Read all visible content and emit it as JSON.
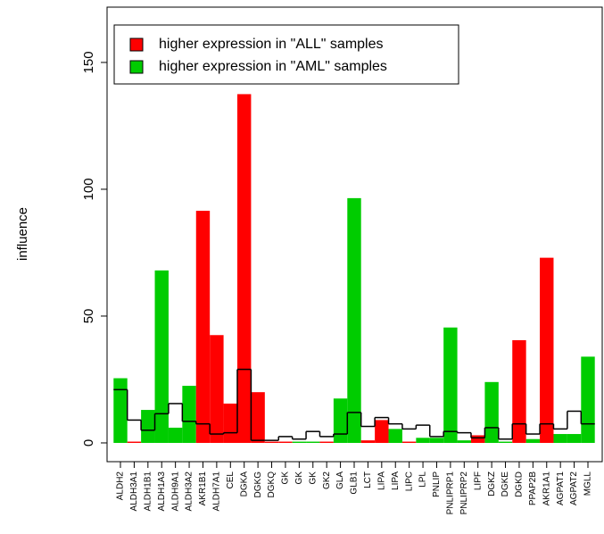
{
  "chart_data": {
    "type": "bar",
    "y_label": "influence",
    "categories": [
      "ALDH2",
      "ALDH3A1",
      "ALDH1B1",
      "ALDH1A3",
      "ALDH9A1",
      "ALDH3A2",
      "AKR1B1",
      "ALDH7A1",
      "CEL",
      "DGKA",
      "DGKG",
      "DGKQ",
      "GK",
      "GK",
      "GK",
      "GK2",
      "GLA",
      "GLB1",
      "LCT",
      "LIPA",
      "LIPA",
      "LIPC",
      "LPL",
      "PNLIP",
      "PNLIPRP1",
      "PNLIPRP2",
      "LIPF",
      "DGKZ",
      "DGKE",
      "DGKD",
      "PPAP2B",
      "AKR1A1",
      "AGPAT1",
      "AGPAT2",
      "MGLL"
    ],
    "values": [
      25.5,
      0.5,
      13,
      68,
      6,
      22.5,
      91.5,
      42.5,
      15.5,
      137.5,
      20,
      0.5,
      0.5,
      0.5,
      0.5,
      0.5,
      17.5,
      96.5,
      1,
      9,
      5.5,
      0.5,
      2,
      2,
      45.5,
      1,
      3,
      24,
      0.5,
      40.5,
      1.5,
      73,
      3.5,
      3.5,
      34
    ],
    "colors": [
      "#00cc00",
      "#ff0000",
      "#00cc00",
      "#00cc00",
      "#00cc00",
      "#00cc00",
      "#ff0000",
      "#ff0000",
      "#ff0000",
      "#ff0000",
      "#ff0000",
      "#ff0000",
      "#ff0000",
      "#00cc00",
      "#00cc00",
      "#ff0000",
      "#00cc00",
      "#00cc00",
      "#ff0000",
      "#ff0000",
      "#00cc00",
      "#ff0000",
      "#00cc00",
      "#00cc00",
      "#00cc00",
      "#00cc00",
      "#ff0000",
      "#00cc00",
      "#00cc00",
      "#ff0000",
      "#00cc00",
      "#ff0000",
      "#00cc00",
      "#00cc00",
      "#00cc00"
    ],
    "expected": [
      21,
      9,
      5,
      11.5,
      15.5,
      8.5,
      7.5,
      3.5,
      4,
      29,
      1,
      1,
      2.5,
      1.5,
      4.5,
      2.5,
      3.5,
      12,
      6.5,
      10,
      7.5,
      5.5,
      7,
      2.5,
      4.5,
      4,
      2,
      6,
      1.5,
      7.5,
      3.5,
      7.5,
      5.5,
      12.5,
      7.5
    ],
    "legend": [
      {
        "name": "higher expression in \"ALL\" samples",
        "color": "#ff0000"
      },
      {
        "name": "higher expression in \"AML\" samples",
        "color": "#00cc00"
      }
    ],
    "ylim": [
      -7.4,
      171.8
    ],
    "yticks": [
      0,
      50,
      100,
      150
    ]
  }
}
